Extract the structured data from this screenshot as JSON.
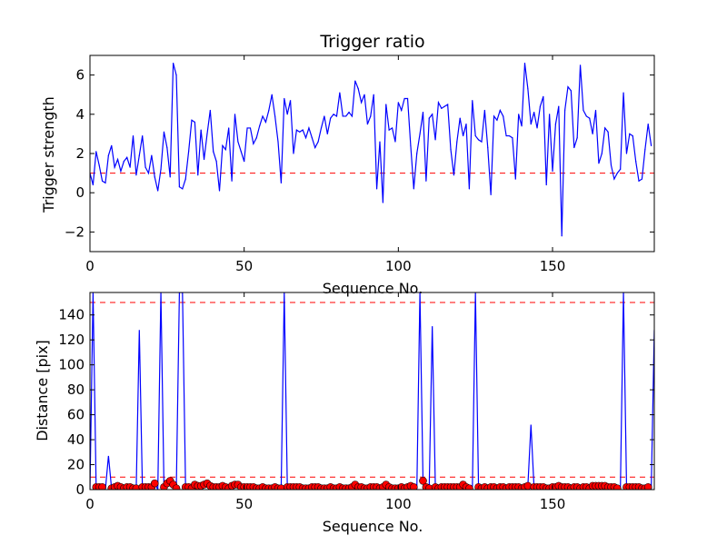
{
  "chart_data": [
    {
      "type": "line",
      "title": "Trigger ratio",
      "xlabel": "Sequence No.",
      "ylabel": "Trigger strength",
      "xlim": [
        0,
        183
      ],
      "ylim": [
        -3,
        7
      ],
      "xticks": [
        0,
        50,
        100,
        150
      ],
      "yticks": [
        -2,
        0,
        2,
        4,
        6
      ],
      "ytick_labels": [
        "−2",
        "0",
        "2",
        "4",
        "6"
      ],
      "threshold": 1,
      "colors": {
        "line": "#0000ff",
        "threshold": "#ff0000"
      },
      "x_start": 0,
      "values": [
        1.0,
        0.4,
        2.1,
        1.4,
        0.6,
        0.5,
        1.9,
        2.4,
        1.3,
        1.7,
        1.1,
        1.6,
        1.8,
        1.3,
        2.9,
        0.9,
        1.9,
        2.9,
        1.3,
        1.0,
        1.9,
        0.8,
        0.1,
        1.2,
        3.1,
        2.3,
        0.8,
        6.6,
        6.0,
        0.3,
        0.2,
        0.7,
        2.1,
        3.7,
        3.6,
        0.9,
        3.2,
        1.7,
        3.0,
        4.2,
        2.1,
        1.6,
        0.1,
        2.4,
        2.2,
        3.3,
        0.6,
        4.0,
        2.6,
        2.1,
        1.6,
        3.3,
        3.3,
        2.5,
        2.8,
        3.4,
        3.9,
        3.6,
        4.2,
        5.0,
        3.9,
        2.6,
        0.5,
        4.8,
        4.0,
        4.7,
        2.0,
        3.2,
        3.1,
        3.2,
        2.8,
        3.3,
        2.8,
        2.3,
        2.6,
        3.3,
        3.9,
        3.0,
        3.8,
        4.0,
        3.9,
        5.1,
        3.9,
        3.9,
        4.1,
        3.9,
        5.7,
        5.3,
        4.6,
        5.0,
        3.5,
        3.9,
        5.0,
        0.2,
        2.6,
        -0.5,
        4.5,
        3.2,
        3.3,
        2.6,
        4.6,
        4.2,
        4.8,
        4.8,
        2.4,
        0.2,
        2.0,
        3.0,
        4.1,
        0.6,
        3.8,
        4.0,
        2.7,
        4.6,
        4.3,
        4.4,
        4.5,
        2.2,
        0.9,
        2.6,
        3.8,
        2.9,
        3.5,
        0.2,
        4.7,
        2.9,
        2.7,
        2.6,
        4.2,
        2.3,
        -0.1,
        3.9,
        3.7,
        4.2,
        3.9,
        2.9,
        2.9,
        2.8,
        0.7,
        4.0,
        3.4,
        6.6,
        5.3,
        3.5,
        4.1,
        3.3,
        4.4,
        4.9,
        0.4,
        4.0,
        1.1,
        3.5,
        4.4,
        -2.2,
        4.2,
        5.4,
        5.2,
        2.3,
        2.8,
        6.5,
        4.2,
        3.9,
        3.8,
        3.0,
        4.2,
        1.5,
        2.0,
        3.3,
        3.1,
        1.4,
        0.7,
        1.0,
        1.2,
        5.1,
        2.0,
        3.0,
        2.9,
        1.6,
        0.6,
        0.7,
        2.2,
        3.5,
        2.4
      ]
    },
    {
      "type": "line",
      "title": "",
      "xlabel": "Sequence No.",
      "ylabel": "Distance [pix]",
      "xlim": [
        0,
        183
      ],
      "ylim": [
        0,
        158
      ],
      "xticks": [
        0,
        50,
        100,
        150
      ],
      "yticks": [
        0,
        20,
        40,
        60,
        80,
        100,
        120,
        140
      ],
      "thresholds": [
        10,
        150
      ],
      "colors": {
        "line": "#0000ff",
        "threshold": "#ff0000",
        "marker": "#ff0000",
        "marker_edge": "#000000"
      },
      "x_start": 0,
      "line_values": [
        0,
        158,
        2,
        2,
        2,
        0,
        27,
        1,
        2,
        3,
        2,
        1,
        2,
        2,
        1,
        1,
        128,
        2,
        2,
        2,
        2,
        5,
        0,
        158,
        2,
        5,
        7,
        4,
        1,
        158,
        158,
        2,
        2,
        1,
        4,
        3,
        3,
        4,
        5,
        3,
        2,
        2,
        2,
        3,
        2,
        1,
        3,
        4,
        4,
        2,
        2,
        2,
        2,
        2,
        1,
        1,
        2,
        1,
        1,
        1,
        2,
        1,
        1,
        158,
        2,
        2,
        2,
        2,
        2,
        1,
        1,
        1,
        2,
        2,
        2,
        1,
        1,
        1,
        2,
        1,
        1,
        2,
        1,
        1,
        1,
        2,
        4,
        2,
        2,
        1,
        1,
        2,
        2,
        2,
        1,
        2,
        4,
        2,
        1,
        1,
        1,
        2,
        1,
        2,
        3,
        2,
        0,
        158,
        7,
        2,
        1,
        131,
        2,
        1,
        2,
        2,
        2,
        2,
        2,
        2,
        2,
        4,
        2,
        1,
        0,
        158,
        2,
        1,
        2,
        1,
        2,
        2,
        1,
        2,
        2,
        1,
        2,
        2,
        2,
        2,
        1,
        2,
        3,
        52,
        2,
        2,
        2,
        2,
        1,
        1,
        2,
        2,
        3,
        2,
        2,
        2,
        1,
        2,
        2,
        1,
        2,
        2,
        1,
        3,
        3,
        3,
        3,
        3,
        2,
        2,
        2,
        1,
        0,
        158,
        2,
        2,
        2,
        2,
        2,
        1,
        1,
        2,
        0,
        128,
        97,
        2,
        2,
        2
      ],
      "marker_values": [
        null,
        null,
        2,
        2,
        2,
        null,
        null,
        1,
        2,
        3,
        2,
        1,
        2,
        2,
        1,
        1,
        null,
        2,
        2,
        2,
        2,
        5,
        null,
        null,
        2,
        5,
        7,
        4,
        1,
        null,
        null,
        2,
        2,
        1,
        4,
        3,
        3,
        4,
        5,
        3,
        2,
        2,
        2,
        3,
        2,
        1,
        3,
        4,
        4,
        2,
        2,
        2,
        2,
        2,
        1,
        1,
        2,
        1,
        1,
        1,
        2,
        1,
        1,
        null,
        2,
        2,
        2,
        2,
        2,
        1,
        1,
        1,
        2,
        2,
        2,
        1,
        1,
        1,
        2,
        1,
        1,
        2,
        1,
        1,
        1,
        2,
        4,
        2,
        2,
        1,
        1,
        2,
        2,
        2,
        1,
        2,
        4,
        2,
        1,
        1,
        1,
        2,
        1,
        2,
        3,
        2,
        null,
        null,
        7,
        2,
        1,
        null,
        2,
        1,
        2,
        2,
        2,
        2,
        2,
        2,
        2,
        4,
        2,
        1,
        null,
        null,
        2,
        1,
        2,
        1,
        2,
        2,
        1,
        2,
        2,
        1,
        2,
        2,
        2,
        2,
        1,
        2,
        3,
        null,
        2,
        2,
        2,
        2,
        1,
        1,
        2,
        2,
        3,
        2,
        2,
        2,
        1,
        2,
        2,
        1,
        2,
        2,
        1,
        3,
        3,
        3,
        3,
        3,
        2,
        2,
        2,
        1,
        null,
        null,
        2,
        2,
        2,
        2,
        2,
        1,
        1,
        2,
        null,
        null,
        null,
        2,
        2,
        2
      ]
    }
  ]
}
